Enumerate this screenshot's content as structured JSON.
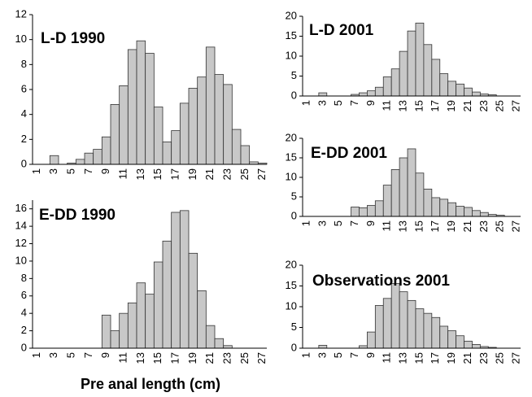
{
  "chart_data": [
    {
      "type": "bar",
      "title": "L-D 1990",
      "categories": [
        1,
        null,
        3,
        null,
        5,
        null,
        7,
        null,
        9,
        null,
        11,
        null,
        13,
        null,
        15,
        null,
        17,
        null,
        19,
        null,
        21,
        null,
        23,
        null,
        25,
        null,
        27
      ],
      "values": [
        0,
        0,
        0.7,
        0,
        0.1,
        0.4,
        0.9,
        1.2,
        2.2,
        4.8,
        6.3,
        9.2,
        9.9,
        8.9,
        4.6,
        1.8,
        2.7,
        4.9,
        6.1,
        7.0,
        9.4,
        7.2,
        6.4,
        2.8,
        1.5,
        0.2,
        0.1
      ],
      "color": "#c8c8c8",
      "ylim": [
        0,
        12
      ],
      "yticks": [
        0,
        2,
        4,
        6,
        8,
        10,
        12
      ]
    },
    {
      "type": "bar",
      "title": "L-D 2001",
      "categories": [
        1,
        null,
        3,
        null,
        5,
        null,
        7,
        null,
        9,
        null,
        11,
        null,
        13,
        null,
        15,
        null,
        17,
        null,
        19,
        null,
        21,
        null,
        23,
        null,
        25,
        null,
        27
      ],
      "values": [
        0,
        0,
        0.8,
        0,
        0,
        0,
        0.4,
        0.8,
        1.3,
        2.2,
        4.8,
        6.8,
        11.2,
        16.3,
        18.3,
        12.9,
        9.2,
        5.6,
        3.7,
        3.0,
        2.0,
        1.0,
        0.5,
        0.3,
        0,
        0,
        0
      ],
      "color": "#c8c8c8",
      "ylim": [
        0,
        20
      ],
      "yticks": [
        0,
        5,
        10,
        15,
        20
      ]
    },
    {
      "type": "bar",
      "title": "E-DD 1990",
      "categories": [
        1,
        null,
        3,
        null,
        5,
        null,
        7,
        null,
        9,
        null,
        11,
        null,
        13,
        null,
        15,
        null,
        17,
        null,
        19,
        null,
        21,
        null,
        23,
        null,
        25,
        null,
        27
      ],
      "values": [
        0,
        0,
        0,
        0,
        0,
        0,
        0,
        0,
        3.8,
        2.0,
        4.0,
        5.2,
        7.5,
        6.2,
        9.9,
        12.3,
        15.6,
        15.8,
        10.9,
        6.6,
        2.6,
        1.1,
        0.3,
        0,
        0,
        0,
        0
      ],
      "color": "#c8c8c8",
      "ylim": [
        0,
        17
      ],
      "yticks": [
        0,
        2,
        4,
        6,
        8,
        10,
        12,
        14,
        16
      ],
      "xlabel": "Pre anal length (cm)"
    },
    {
      "type": "bar",
      "title": "E-DD 2001",
      "categories": [
        1,
        null,
        3,
        null,
        5,
        null,
        7,
        null,
        9,
        null,
        11,
        null,
        13,
        null,
        15,
        null,
        17,
        null,
        19,
        null,
        21,
        null,
        23,
        null,
        25,
        null,
        27
      ],
      "values": [
        0,
        0,
        0,
        0,
        0,
        0,
        2.4,
        2.2,
        2.8,
        4.0,
        8.0,
        12.0,
        15.0,
        17.3,
        11.1,
        7.0,
        4.8,
        4.4,
        3.5,
        2.6,
        2.3,
        1.5,
        1.0,
        0.5,
        0.3,
        0,
        0
      ],
      "color": "#c8c8c8",
      "ylim": [
        0,
        20
      ],
      "yticks": [
        0,
        5,
        10,
        15,
        20
      ]
    },
    {
      "type": "bar",
      "title": "Observations 2001",
      "categories": [
        1,
        null,
        3,
        null,
        5,
        null,
        7,
        null,
        9,
        null,
        11,
        null,
        13,
        null,
        15,
        null,
        17,
        null,
        19,
        null,
        21,
        null,
        23,
        null,
        25,
        null,
        27
      ],
      "values": [
        0,
        0,
        0.7,
        0,
        0,
        0,
        0,
        0.6,
        3.9,
        10.3,
        12.0,
        15.6,
        13.6,
        11.5,
        9.5,
        8.4,
        7.4,
        5.3,
        4.2,
        3.0,
        1.7,
        0.9,
        0.4,
        0.2,
        0,
        0,
        0
      ],
      "color": "#c8c8c8",
      "ylim": [
        0,
        20
      ],
      "yticks": [
        0,
        5,
        10,
        15,
        20
      ]
    }
  ]
}
